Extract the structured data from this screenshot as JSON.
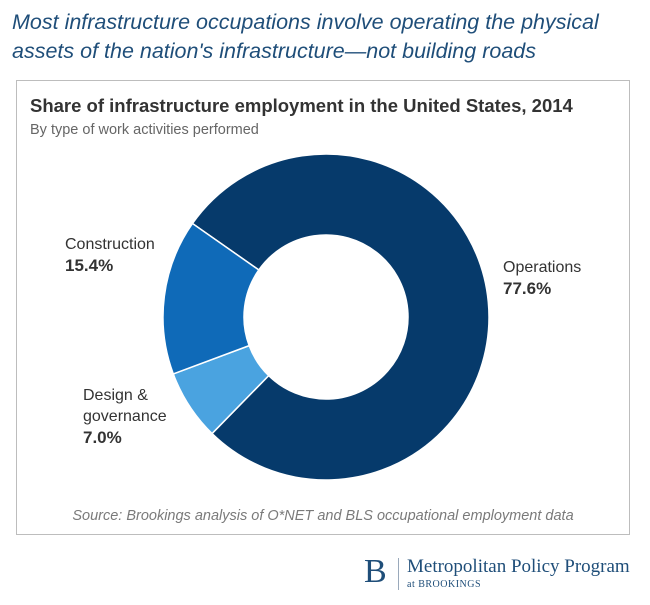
{
  "headline": "Most infrastructure occupations involve operating the physical assets of the nation's infrastructure—not building roads",
  "chart_data": {
    "type": "pie",
    "variant": "donut",
    "title": "Share of infrastructure employment in the United States, 2014",
    "subtitle": "By type of work activities performed",
    "categories": [
      "Operations",
      "Design & governance",
      "Construction"
    ],
    "values": [
      77.6,
      7.0,
      15.4
    ],
    "value_labels": [
      "77.6%",
      "7.0%",
      "15.4%"
    ],
    "unit": "%",
    "colors": [
      "#063a6b",
      "#4aa3e0",
      "#0f6ab8"
    ],
    "source": "Source: Brookings analysis of O*NET and BLS occupational employment data"
  },
  "labels": {
    "operations": {
      "name": "Operations",
      "value": "77.6%"
    },
    "design": {
      "name_line1": "Design &",
      "name_line2": "governance",
      "value": "7.0%"
    },
    "construction": {
      "name": "Construction",
      "value": "15.4%"
    }
  },
  "logo": {
    "mark": "B",
    "name": "Metropolitan Policy Program",
    "sub": "at BROOKINGS"
  }
}
